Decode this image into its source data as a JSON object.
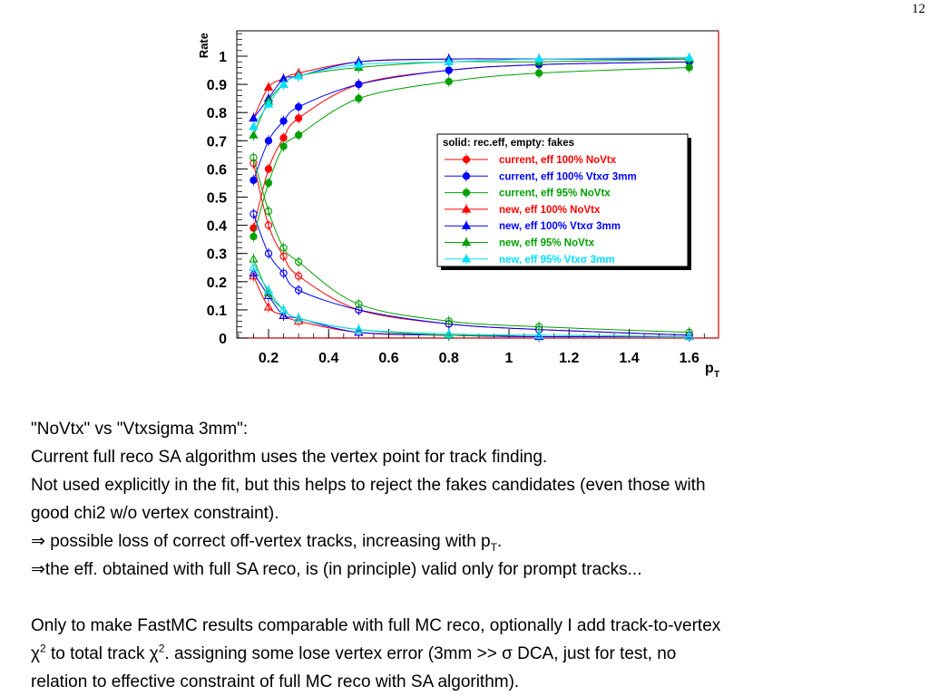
{
  "page_number": "12",
  "chart_data": {
    "type": "scatter",
    "ylabel": "Rate",
    "xlabel": "p",
    "xlabel_sub": "T",
    "xlim": [
      0.1,
      1.7
    ],
    "ylim": [
      0,
      1.1
    ],
    "xticks": [
      0.2,
      0.4,
      0.6,
      0.8,
      1,
      1.2,
      1.4,
      1.6
    ],
    "xtick_labels": [
      "0.2",
      "0.4",
      "0.6",
      "0.8",
      "1",
      "1.2",
      "1.4",
      "1.6"
    ],
    "yticks": [
      0,
      0.1,
      0.2,
      0.3,
      0.4,
      0.5,
      0.6,
      0.7,
      0.8,
      0.9,
      1
    ],
    "ytick_labels": [
      "0",
      "0.1",
      "0.2",
      "0.3",
      "0.4",
      "0.5",
      "0.6",
      "0.7",
      "0.8",
      "0.9",
      "1"
    ],
    "legend_header": "solid: rec.eff, empty: fakes",
    "legend_position": "right-center",
    "grid": false,
    "series": [
      {
        "name": "current, eff 100% NoVtx",
        "color": "#ff0000",
        "marker": "circle",
        "x": [
          0.15,
          0.2,
          0.25,
          0.3,
          0.5,
          0.8,
          1.1,
          1.6
        ],
        "eff": [
          0.39,
          0.6,
          0.71,
          0.78,
          0.9,
          0.95,
          0.97,
          0.98
        ],
        "fake": [
          0.62,
          0.4,
          0.29,
          0.22,
          0.1,
          0.05,
          0.03,
          0.01
        ]
      },
      {
        "name": "current, eff 100% Vtxσ 3mm",
        "color": "#0000ff",
        "marker": "circle",
        "x": [
          0.15,
          0.2,
          0.25,
          0.3,
          0.5,
          0.8,
          1.1,
          1.6
        ],
        "eff": [
          0.56,
          0.7,
          0.77,
          0.82,
          0.9,
          0.95,
          0.97,
          0.98
        ],
        "fake": [
          0.44,
          0.3,
          0.23,
          0.17,
          0.1,
          0.05,
          0.03,
          0.01
        ]
      },
      {
        "name": "current, eff 95% NoVtx",
        "color": "#00a000",
        "marker": "circle",
        "x": [
          0.15,
          0.2,
          0.25,
          0.3,
          0.5,
          0.8,
          1.1,
          1.6
        ],
        "eff": [
          0.36,
          0.55,
          0.68,
          0.72,
          0.85,
          0.91,
          0.94,
          0.96
        ],
        "fake": [
          0.64,
          0.45,
          0.32,
          0.27,
          0.12,
          0.06,
          0.04,
          0.02
        ]
      },
      {
        "name": "new, eff 100% NoVtx",
        "color": "#ff0000",
        "marker": "triangle",
        "x": [
          0.15,
          0.2,
          0.25,
          0.3,
          0.5,
          0.8,
          1.1,
          1.6
        ],
        "eff": [
          0.78,
          0.89,
          0.92,
          0.94,
          0.98,
          0.99,
          0.99,
          0.99
        ],
        "fake": [
          0.22,
          0.11,
          0.08,
          0.06,
          0.02,
          0.01,
          0.005,
          0.005
        ]
      },
      {
        "name": "new, eff 100% Vtxσ 3mm",
        "color": "#0000ff",
        "marker": "triangle",
        "x": [
          0.15,
          0.2,
          0.25,
          0.3,
          0.5,
          0.8,
          1.1,
          1.6
        ],
        "eff": [
          0.78,
          0.85,
          0.92,
          0.93,
          0.98,
          0.99,
          0.99,
          0.99
        ],
        "fake": [
          0.23,
          0.15,
          0.08,
          0.07,
          0.02,
          0.01,
          0.005,
          0.005
        ]
      },
      {
        "name": "new, eff 95% NoVtx",
        "color": "#00a000",
        "marker": "triangle",
        "x": [
          0.15,
          0.2,
          0.25,
          0.3,
          0.5,
          0.8,
          1.1,
          1.6
        ],
        "eff": [
          0.72,
          0.84,
          0.9,
          0.93,
          0.96,
          0.98,
          0.98,
          0.99
        ],
        "fake": [
          0.28,
          0.16,
          0.1,
          0.07,
          0.03,
          0.01,
          0.01,
          0.005
        ]
      },
      {
        "name": "new, eff 95% Vtxσ 3mm",
        "color": "#00e0ff",
        "marker": "triangle",
        "x": [
          0.15,
          0.2,
          0.25,
          0.3,
          0.5,
          0.8,
          1.1,
          1.6
        ],
        "eff": [
          0.75,
          0.83,
          0.9,
          0.93,
          0.97,
          0.98,
          0.99,
          0.995
        ],
        "fake": [
          0.25,
          0.17,
          0.1,
          0.07,
          0.03,
          0.015,
          0.01,
          0.005
        ]
      }
    ]
  },
  "text": {
    "line1": "\"NoVtx\" vs \"Vtxsigma 3mm\":",
    "line2": "Current full reco SA algorithm uses the vertex point for track finding.",
    "line3": "Not used explicitly in the fit, but this helps to reject the fakes candidates (even those with",
    "line4": "good chi2 w/o vertex constraint).",
    "line5_arrow": "⇒",
    "line5_text": " possible loss of correct off-vertex tracks, increasing with p",
    "line5_sub": "T",
    "line5_end": ".",
    "line6_arrow": "⇒",
    "line6_text": "the eff. obtained with full SA reco, is (in principle) valid only for prompt tracks...",
    "line7": "Only to make FastMC results comparable with full MC reco, optionally I add track-to-vertex",
    "line8_chi": "χ",
    "line8_sup": "2",
    "line8_mid": " to total track ",
    "line8_chi2": "χ",
    "line8_sup2": "2",
    "line8_end": ". assigning some lose vertex error (3mm >> σ DCA, just for test, no",
    "line9": "relation to effective constraint of full MC reco with SA algorithm)."
  }
}
